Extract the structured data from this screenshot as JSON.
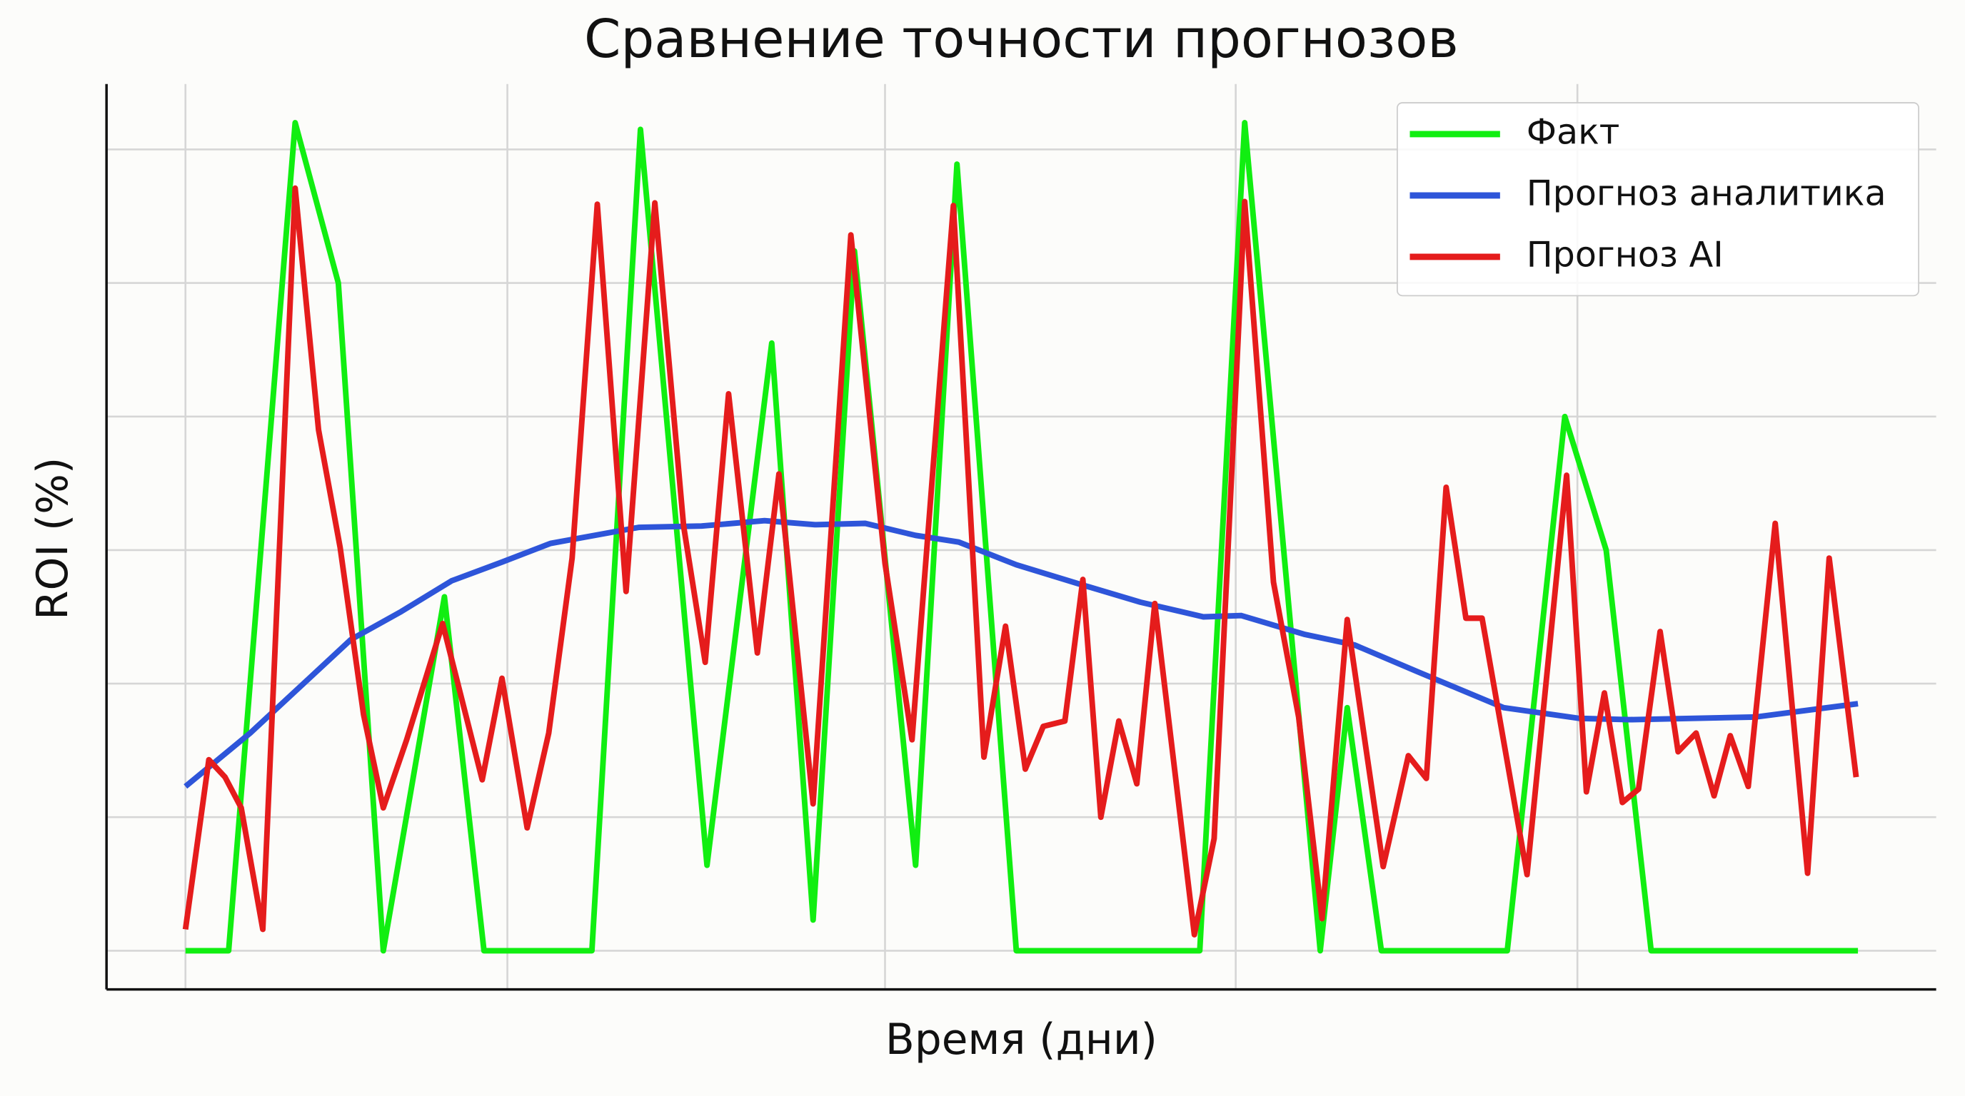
{
  "chart_data": {
    "type": "line",
    "title": "Сравнение точности прогнозов",
    "xlabel": "Время (дни)",
    "ylabel": "ROI (%)",
    "xlim": [
      -4.39,
      97.35
    ],
    "ylim": [
      -0.29,
      6.49
    ],
    "xgrid": [
      0,
      17.9,
      38.9,
      58.4,
      77.4
    ],
    "ygrid": [
      0,
      1,
      2,
      3,
      4,
      5,
      6
    ],
    "legend": "upper right",
    "series": [
      {
        "name": "Факт",
        "color": "#11ee11",
        "x": [
          0,
          2.4,
          6.1,
          8.5,
          11,
          14.4,
          16.6,
          22.6,
          25.3,
          29,
          32.6,
          34.9,
          37.2,
          40.6,
          42.9,
          46.2,
          56.4,
          58.9,
          63.1,
          64.6,
          66.5,
          73.5,
          76.7,
          79,
          81.5,
          93
        ],
        "values": [
          0,
          0,
          6.2,
          5,
          0,
          2.65,
          0,
          0,
          6.15,
          0.64,
          4.55,
          0.23,
          5.24,
          0.64,
          5.89,
          0,
          0,
          6.2,
          0,
          1.82,
          0,
          0,
          4,
          3,
          0,
          0
        ]
      },
      {
        "name": "Прогноз аналитика",
        "color": "#2e55d9",
        "x": [
          0,
          3.6,
          6.8,
          9.2,
          12,
          14.8,
          17.6,
          20.3,
          25.2,
          28.7,
          32.2,
          35,
          37.8,
          40.6,
          43,
          46.2,
          49.6,
          53.1,
          56.6,
          58.7,
          62.2,
          65,
          68.5,
          73.3,
          77.5,
          80.3,
          87.3,
          93
        ],
        "values": [
          1.23,
          1.63,
          2.03,
          2.33,
          2.54,
          2.77,
          2.91,
          3.05,
          3.17,
          3.18,
          3.22,
          3.19,
          3.2,
          3.11,
          3.06,
          2.89,
          2.75,
          2.61,
          2.5,
          2.51,
          2.37,
          2.29,
          2.09,
          1.82,
          1.74,
          1.73,
          1.75,
          1.85
        ]
      },
      {
        "name": "Прогноз AI",
        "color": "#e51c1c",
        "x": [
          0,
          1.3,
          2.2,
          3.1,
          4.3,
          6.1,
          7.4,
          8.6,
          9.9,
          11,
          12.3,
          14.3,
          16.5,
          17.6,
          19,
          20.2,
          21.5,
          22.9,
          24.5,
          26.1,
          27.7,
          28.9,
          30.2,
          31.8,
          33,
          34.9,
          37,
          38.9,
          40.4,
          42.7,
          44.4,
          45.6,
          46.7,
          47.7,
          48.9,
          49.9,
          50.9,
          51.9,
          52.9,
          53.9,
          56.1,
          57.2,
          58.9,
          60.5,
          61.9,
          63.2,
          64.6,
          66.6,
          68,
          69,
          70.1,
          71.2,
          72.1,
          74.6,
          76.8,
          77.9,
          78.9,
          79.9,
          80.8,
          82,
          83,
          84,
          85,
          85.9,
          86.9,
          88.4,
          90.2,
          91.4,
          92.9
        ],
        "values": [
          0.16,
          1.43,
          1.3,
          1.07,
          0.16,
          5.71,
          3.9,
          3.02,
          1.77,
          1.07,
          1.58,
          2.45,
          1.28,
          2.04,
          0.92,
          1.63,
          2.94,
          5.59,
          2.69,
          5.6,
          3.18,
          2.16,
          4.17,
          2.23,
          3.57,
          1.1,
          5.36,
          2.9,
          1.58,
          5.58,
          1.45,
          2.43,
          1.36,
          1.68,
          1.72,
          2.78,
          1,
          1.72,
          1.25,
          2.6,
          0.12,
          0.84,
          5.61,
          2.76,
          1.75,
          0.24,
          2.48,
          0.63,
          1.46,
          1.29,
          3.47,
          2.49,
          2.49,
          0.57,
          3.56,
          1.19,
          1.93,
          1.11,
          1.21,
          2.39,
          1.49,
          1.63,
          1.16,
          1.61,
          1.23,
          3.2,
          0.58,
          2.94,
          1.3
        ]
      }
    ]
  }
}
